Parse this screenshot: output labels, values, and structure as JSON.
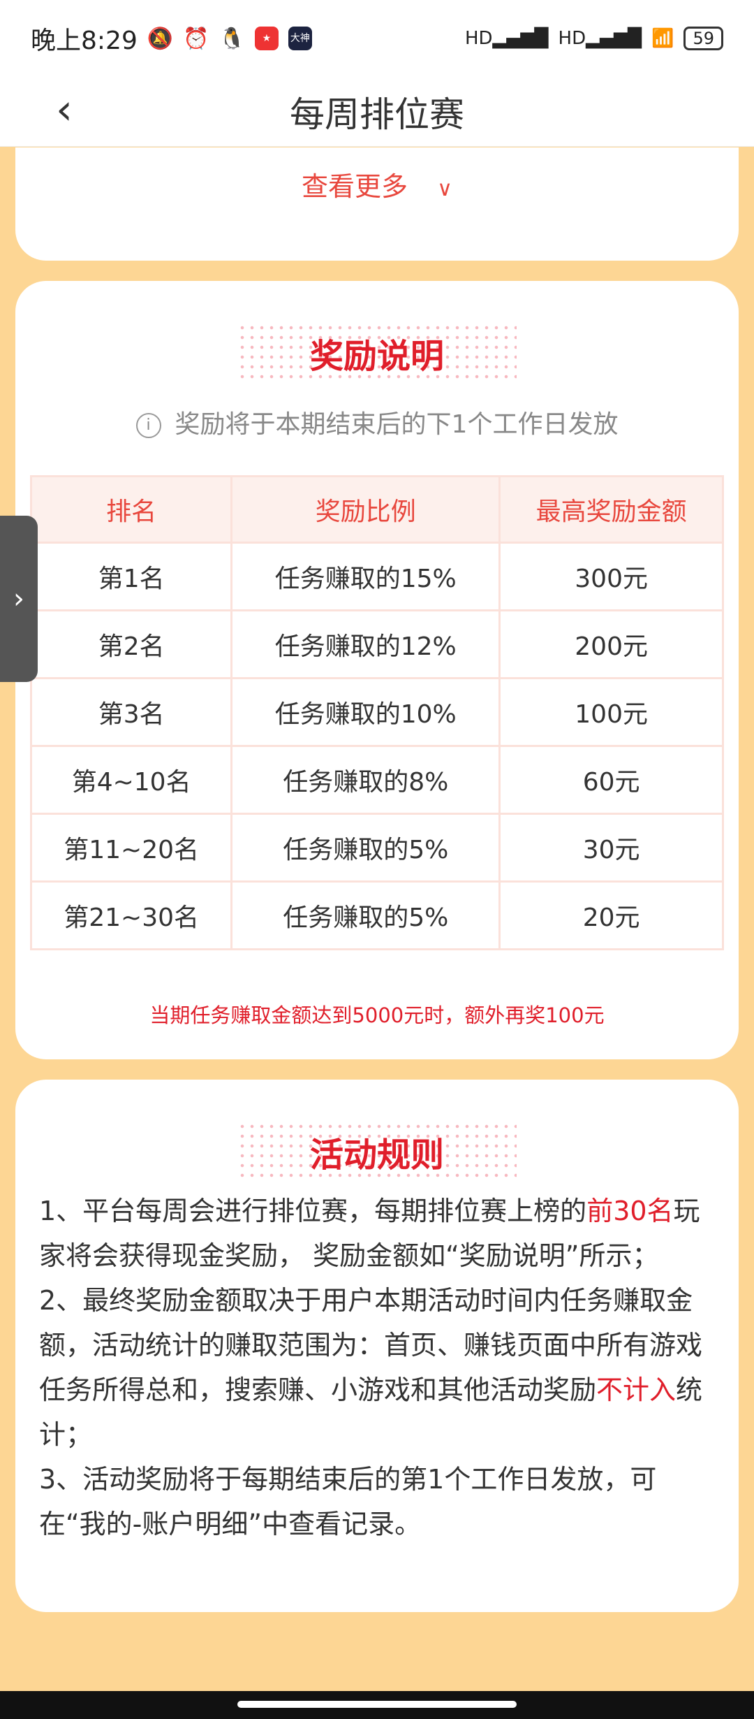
{
  "status_bar": {
    "time": "晚上8:29",
    "app_icons": [
      "大神"
    ],
    "signal": "HD",
    "battery": "59"
  },
  "nav": {
    "title": "每周排位赛",
    "back_icon": "chevron-left"
  },
  "previous_card": {
    "more_label": "查看更多",
    "more_icon": "chevron-down"
  },
  "rewards": {
    "title": "奖励说明",
    "subtitle": "奖励将于本期结束后的下1个工作日发放",
    "headers": [
      "排名",
      "奖励比例",
      "最高奖励金额"
    ],
    "rows": [
      [
        "第1名",
        "任务赚取的15%",
        "300元"
      ],
      [
        "第2名",
        "任务赚取的12%",
        "200元"
      ],
      [
        "第3名",
        "任务赚取的10%",
        "100元"
      ],
      [
        "第4~10名",
        "任务赚取的8%",
        "60元"
      ],
      [
        "第11~20名",
        "任务赚取的5%",
        "30元"
      ],
      [
        "第21~30名",
        "任务赚取的5%",
        "20元"
      ]
    ],
    "note": "当期任务赚取金额达到5000元时，额外再奖100元"
  },
  "rules": {
    "title": "活动规则",
    "r1a": "1、平台每周会进行排位赛，每期排位赛上榜的",
    "r1b": "前30名",
    "r1c": "玩家将会获得现金奖励， 奖励金额如“奖励说明”所示；",
    "r2a": "2、最终奖励金额取决于用户本期活动时间内任务赚取金额，活动统计的赚取范围为：首页、赚钱页面中所有游戏任务所得总和，搜索赚、小游戏和其他活动奖励",
    "r2b": "不计入",
    "r2c": "统计；",
    "r3": "3、活动奖励将于每期结束后的第1个工作日发放，可在“我的-账户明细”中查看记录。"
  },
  "colors": {
    "accent": "#e01e2a",
    "background": "#fdd694"
  }
}
